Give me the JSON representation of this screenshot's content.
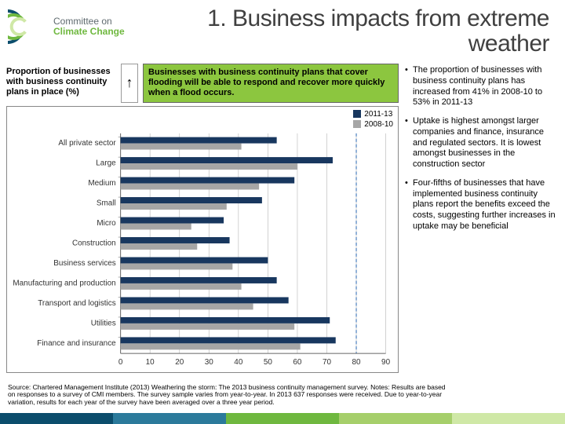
{
  "header": {
    "logo": {
      "line1": "Committee on",
      "line2": "Climate Change",
      "arc_colors": [
        "#0b4d6c",
        "#6fb83f",
        "#cfe8a6"
      ]
    },
    "title": "1. Business impacts from extreme weather"
  },
  "top_row": {
    "prop_label": "Proportion of businesses with business continuity plans in place (%)",
    "arrow": "↑",
    "callout": "Businesses with business continuity plans that cover flooding will be able to respond and recover more quickly when a flood occurs."
  },
  "chart": {
    "type": "grouped-bar-horizontal",
    "categories": [
      "All private sector",
      "Large",
      "Medium",
      "Small",
      "Micro",
      "Construction",
      "Business services",
      "Manufacturing and production",
      "Transport and logistics",
      "Utilities",
      "Finance and insurance"
    ],
    "series": [
      {
        "name": "2011-13",
        "color": "#18375f",
        "values": [
          53,
          72,
          59,
          48,
          35,
          37,
          50,
          53,
          57,
          71,
          73
        ]
      },
      {
        "name": "2008-10",
        "color": "#a6a6a6",
        "values": [
          41,
          60,
          47,
          36,
          24,
          26,
          38,
          41,
          45,
          59,
          61
        ]
      }
    ],
    "xlim": [
      0,
      90
    ],
    "xtick_step": 10,
    "plot_bg": "#ffffff",
    "grid_color": "#bfbfbf",
    "axis_color": "#666666",
    "target_ref_x": 80,
    "target_ref_color": "#4a7fbf",
    "label_width": 140,
    "bar_group_height": 24,
    "bar_thickness": 8
  },
  "bullets": [
    "The proportion of businesses with business continuity plans has increased from 41% in 2008-10 to 53% in 2011-13",
    "Uptake is highest amongst larger companies and finance, insurance and regulated sectors. It is lowest amongst businesses in the construction sector",
    "Four-fifths of businesses that have implemented business continuity plans report the benefits exceed the costs, suggesting further increases in uptake may be beneficial"
  ],
  "source": "Source: Chartered Management Institute (2013) Weathering the storm: The 2013 business continuity management survey. Notes: Results are based on responses to a survey of CMI members. The survey sample varies from year-to-year. In 2013 637 responses were received. Due to year-to-year variation, results for each year of the survey have been averaged over a three year period.",
  "footer_colors": [
    "#0b4d6c",
    "#2b7a9b",
    "#6fb83f",
    "#a6cf6b",
    "#cfe8a6"
  ]
}
